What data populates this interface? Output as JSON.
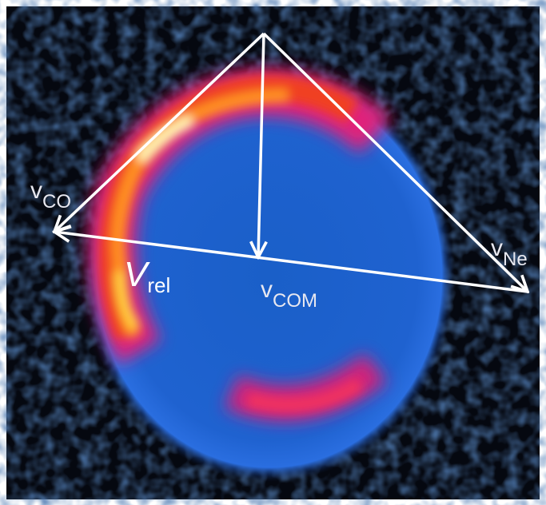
{
  "labels": {
    "v_co": {
      "main": "v",
      "sub": "CO"
    },
    "v_ne": {
      "main": "v",
      "sub": "Ne"
    },
    "v_com": {
      "main": "v",
      "sub": "COM"
    },
    "v_rel": {
      "main": "V",
      "sub": "rel"
    }
  }
}
